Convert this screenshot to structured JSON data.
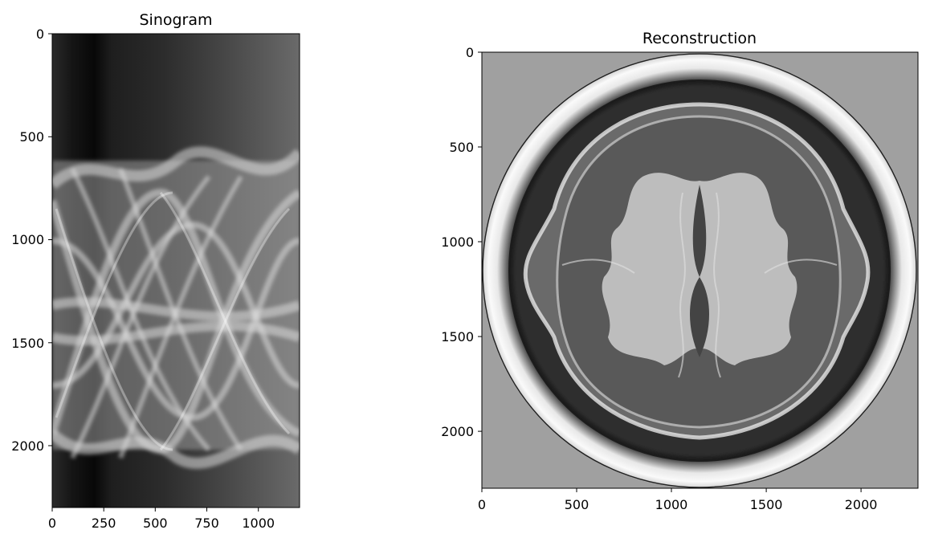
{
  "chart_data": [
    {
      "type": "heatmap",
      "title": "Sinogram",
      "xlabel": "",
      "ylabel": "",
      "xlim": [
        0,
        1200
      ],
      "ylim": [
        2300,
        0
      ],
      "xticks": [
        0,
        250,
        500,
        750,
        1000
      ],
      "yticks": [
        0,
        500,
        1000,
        1500,
        2000
      ],
      "xtick_labels": [
        "0",
        "250",
        "500",
        "750",
        "1000"
      ],
      "ytick_labels": [
        "0",
        "500",
        "1000",
        "1500",
        "2000"
      ],
      "colormap": "gray",
      "grid": false
    },
    {
      "type": "heatmap",
      "title": "Reconstruction",
      "xlabel": "",
      "ylabel": "",
      "xlim": [
        0,
        2300
      ],
      "ylim": [
        2300,
        0
      ],
      "xticks": [
        0,
        500,
        1000,
        1500,
        2000
      ],
      "yticks": [
        0,
        500,
        1000,
        1500,
        2000
      ],
      "xtick_labels": [
        "0",
        "500",
        "1000",
        "1500",
        "2000"
      ],
      "ytick_labels": [
        "0",
        "500",
        "1000",
        "1500",
        "2000"
      ],
      "colormap": "gray",
      "grid": false
    }
  ]
}
